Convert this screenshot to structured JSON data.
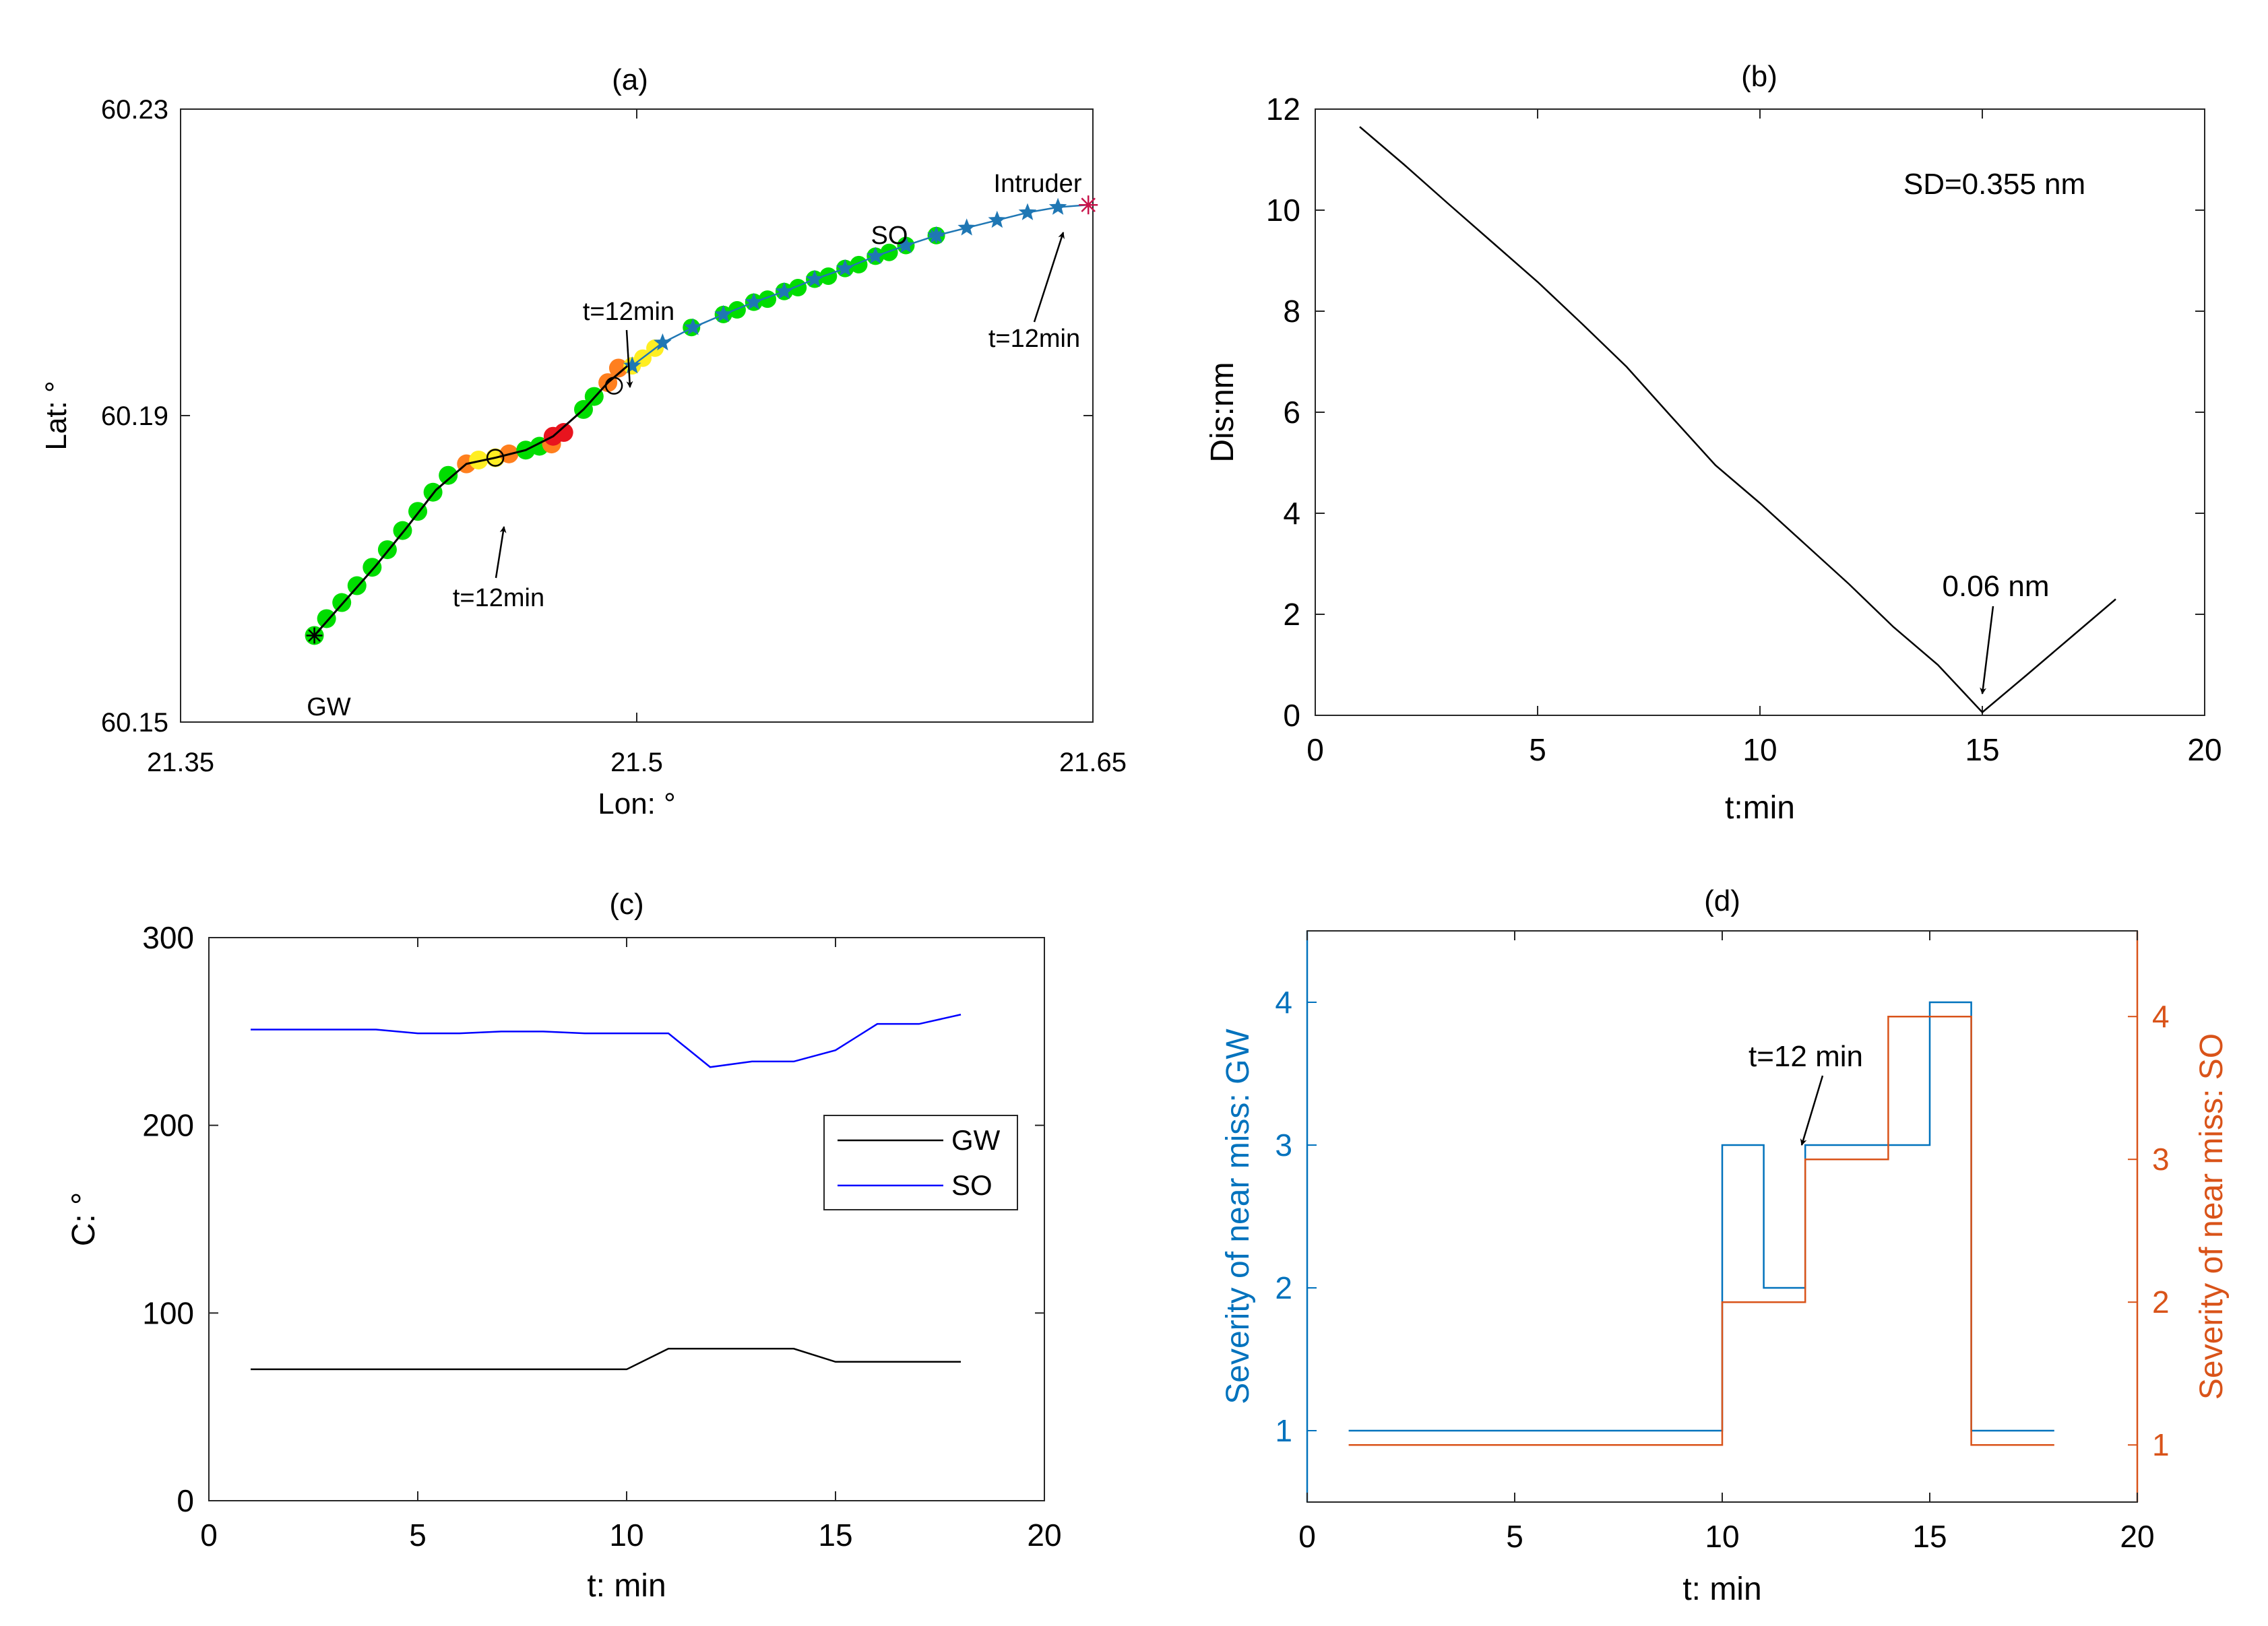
{
  "colors": {
    "axis": "#262626",
    "black": "#000000",
    "blue_line": "#0000ff",
    "matlab_blue": "#0072bd",
    "matlab_orange": "#d95319",
    "star_blue": "#1f77b4",
    "dot_green": "#00dd00",
    "dot_yellow": "#ffee22",
    "dot_orange": "#ff7f1e",
    "dot_red": "#e8141e",
    "intruder": "#c8144b"
  },
  "chart_data": [
    {
      "id": "a",
      "type": "scatter",
      "title": "(a)",
      "xlabel": "Lon: °",
      "ylabel": "Lat: °",
      "xlim": [
        21.35,
        21.65
      ],
      "ylim": [
        60.15,
        60.23
      ],
      "xticks": [
        21.35,
        21.5,
        21.65
      ],
      "xtick_labels": [
        "21.35",
        "21.5",
        "21.65"
      ],
      "yticks": [
        60.15,
        60.19,
        60.23
      ],
      "ytick_labels": [
        "60.15",
        "60.19",
        "60.23"
      ],
      "gw_track": {
        "name": "GW",
        "lon": [
          21.394,
          21.404,
          21.414,
          21.424,
          21.434,
          21.444,
          21.4535,
          21.4635,
          21.4725,
          21.4825,
          21.4905,
          21.497
        ],
        "lat": [
          60.1613,
          60.1658,
          60.1703,
          60.1752,
          60.1803,
          60.1837,
          60.1845,
          60.1855,
          60.1873,
          60.1908,
          60.1943,
          60.1965
        ]
      },
      "gw_dots": {
        "lon": [
          21.394,
          21.398,
          21.403,
          21.408,
          21.413,
          21.418,
          21.423,
          21.428,
          21.433,
          21.438,
          21.444,
          21.448,
          21.4535,
          21.458,
          21.4635,
          21.468,
          21.472,
          21.4725,
          21.476,
          21.4825,
          21.486,
          21.4905,
          21.494
        ],
        "lat": [
          60.1613,
          60.1635,
          60.1656,
          60.1678,
          60.1702,
          60.1725,
          60.175,
          60.1775,
          60.18,
          60.1822,
          60.1837,
          60.1842,
          60.1845,
          60.185,
          60.1855,
          60.186,
          60.1863,
          60.1873,
          60.1878,
          60.1908,
          60.1925,
          60.1943,
          60.1962
        ],
        "colors": [
          "green",
          "green",
          "green",
          "green",
          "green",
          "green",
          "green",
          "green",
          "green",
          "green",
          "orange",
          "yellow",
          "yellow",
          "orange",
          "green",
          "green",
          "orange",
          "red",
          "red",
          "green",
          "green",
          "orange",
          "orange"
        ]
      },
      "gw_circles": {
        "lon": [
          21.4535,
          21.4925
        ],
        "lat": [
          60.1845,
          60.1939
        ]
      },
      "so_track": {
        "name": "SO",
        "lon": [
          21.4985,
          21.5085,
          21.5185,
          21.5285,
          21.5385,
          21.5485,
          21.5585,
          21.5685,
          21.5785,
          21.5885,
          21.5985,
          21.6085,
          21.6185,
          21.6285,
          21.6385,
          21.6485
        ],
        "lat": [
          60.1965,
          60.1995,
          60.2015,
          60.2032,
          60.2048,
          60.2062,
          60.2078,
          60.2092,
          60.2108,
          60.2122,
          60.2135,
          60.2145,
          60.2155,
          60.2165,
          60.2172,
          60.2175
        ]
      },
      "so_dots": {
        "lon": [
          21.4985,
          21.502,
          21.506,
          21.518,
          21.5285,
          21.533,
          21.5385,
          21.543,
          21.5485,
          21.553,
          21.5585,
          21.563,
          21.5685,
          21.573,
          21.5785,
          21.583,
          21.5885,
          21.5985
        ],
        "lat": [
          60.1965,
          60.1975,
          60.1988,
          60.2015,
          60.2032,
          60.2038,
          60.2048,
          60.2052,
          60.2062,
          60.2067,
          60.2078,
          60.2082,
          60.2092,
          60.2097,
          60.2108,
          60.2113,
          60.2122,
          60.2135
        ],
        "colors": [
          "yellow",
          "yellow",
          "yellow",
          "green",
          "green",
          "green",
          "green",
          "green",
          "green",
          "green",
          "green",
          "green",
          "green",
          "green",
          "green",
          "green",
          "green",
          "green"
        ]
      },
      "gw_start": {
        "lon": 21.394,
        "lat": 60.1613
      },
      "intruder": {
        "lon": 21.6485,
        "lat": 60.2175
      },
      "labels": {
        "gw": "GW",
        "so": "SO",
        "intruder": "Intruder"
      },
      "annotations": [
        "t=12min",
        "t=12min",
        "t=12min"
      ]
    },
    {
      "id": "b",
      "type": "line",
      "title": "(b)",
      "xlabel": "t:min",
      "ylabel": "Dis:nm",
      "xlim": [
        0,
        20
      ],
      "ylim": [
        0,
        12
      ],
      "xticks": [
        0,
        5,
        10,
        15,
        20
      ],
      "yticks": [
        0,
        2,
        4,
        6,
        8,
        10,
        12
      ],
      "x": [
        1,
        2,
        3,
        4,
        5,
        6,
        7,
        8,
        9,
        10,
        11,
        12,
        13,
        14,
        15,
        16,
        17,
        18
      ],
      "y": [
        11.65,
        10.9,
        10.12,
        9.35,
        8.58,
        7.75,
        6.9,
        5.92,
        4.95,
        4.2,
        3.4,
        2.6,
        1.75,
        1.0,
        0.06,
        0.8,
        1.55,
        2.3
      ],
      "text_sd": "SD=0.355 nm",
      "annotation": "0.06 nm"
    },
    {
      "id": "c",
      "type": "line",
      "title": "(c)",
      "xlabel": "t: min",
      "ylabel": "C: °",
      "xlim": [
        0,
        20
      ],
      "ylim": [
        0,
        300
      ],
      "xticks": [
        0,
        5,
        10,
        15,
        20
      ],
      "yticks": [
        0,
        100,
        200,
        300
      ],
      "legend": "top-right",
      "series": [
        {
          "name": "GW",
          "color": "black",
          "x": [
            1,
            2,
            3,
            4,
            5,
            6,
            7,
            8,
            9,
            10,
            11,
            12,
            13,
            14,
            15,
            16,
            17,
            18
          ],
          "y": [
            70,
            70,
            70,
            70,
            70,
            70,
            70,
            70,
            70,
            70,
            81,
            81,
            81,
            81,
            74,
            74,
            74,
            74
          ]
        },
        {
          "name": "SO",
          "color": "blue",
          "x": [
            1,
            2,
            3,
            4,
            5,
            6,
            7,
            8,
            9,
            10,
            11,
            12,
            13,
            14,
            15,
            16,
            17,
            18
          ],
          "y": [
            251,
            251,
            251,
            251,
            249,
            249,
            250,
            250,
            249,
            249,
            249,
            231,
            234,
            234,
            240,
            254,
            254,
            259
          ]
        }
      ]
    },
    {
      "id": "d",
      "type": "line",
      "title": "(d)",
      "xlabel": "t: min",
      "ylabel_left": "Severity of near miss: GW",
      "ylabel_right": "Severity of near miss: SO",
      "xlim": [
        0,
        20
      ],
      "ylim_left": [
        0.5,
        4.5
      ],
      "ylim_right": [
        0.6,
        4.6
      ],
      "xticks": [
        0,
        5,
        10,
        15,
        20
      ],
      "yticks": [
        1,
        2,
        3,
        4
      ],
      "annotation": "t=12 min",
      "series": [
        {
          "name": "GW",
          "axis": "left",
          "x": [
            1,
            10,
            10,
            11,
            11,
            12,
            12,
            15,
            15,
            16,
            16,
            18
          ],
          "y": [
            1,
            1,
            3,
            3,
            2,
            2,
            3,
            3,
            4,
            4,
            1,
            1
          ]
        },
        {
          "name": "SO",
          "axis": "right",
          "x": [
            1,
            10,
            10,
            12,
            12,
            14,
            14,
            16,
            16,
            18
          ],
          "y": [
            1,
            1,
            2,
            2,
            3,
            3,
            4,
            4,
            1,
            1
          ]
        }
      ]
    }
  ]
}
